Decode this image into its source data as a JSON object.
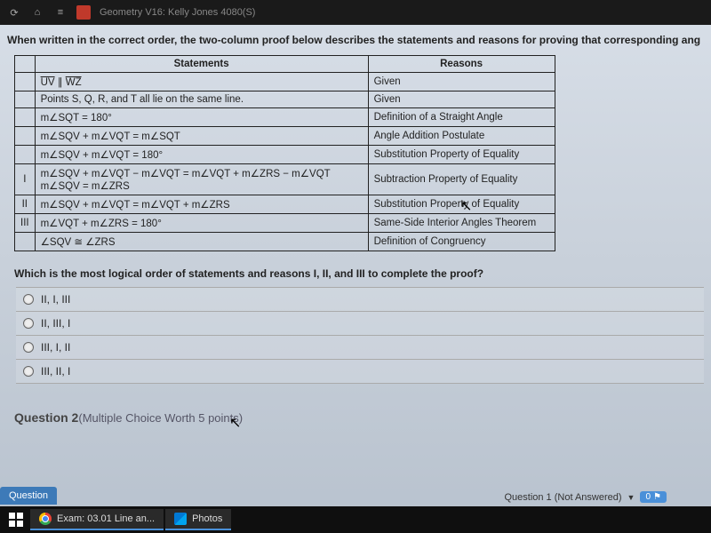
{
  "topbar": {
    "title": "Geometry V16: Kelly Jones  4080(S)"
  },
  "prompt": "When written in the correct order, the two-column proof below describes the statements and reasons for proving that corresponding ang",
  "table": {
    "headers": {
      "statements": "Statements",
      "reasons": "Reasons"
    },
    "rows": [
      {
        "num": "",
        "stmt_html": "<span class='overline'>UV</span> ∥ <span class='overline'>WZ</span>",
        "reason": "Given"
      },
      {
        "num": "",
        "stmt": "Points S, Q, R, and T all lie on the same line.",
        "reason": "Given"
      },
      {
        "num": "",
        "stmt": "m∠SQT = 180°",
        "reason": "Definition of a Straight Angle"
      },
      {
        "num": "",
        "stmt": "m∠SQV + m∠VQT = m∠SQT",
        "reason": "Angle Addition Postulate"
      },
      {
        "num": "",
        "stmt": "m∠SQV + m∠VQT = 180°",
        "reason": "Substitution Property of Equality"
      },
      {
        "num": "I",
        "stmt": "m∠SQV + m∠VQT − m∠VQT = m∠VQT + m∠ZRS − m∠VQT\nm∠SQV = m∠ZRS",
        "reason": "Subtraction Property of Equality"
      },
      {
        "num": "II",
        "stmt": "m∠SQV + m∠VQT = m∠VQT + m∠ZRS",
        "reason": "Substitution Property of Equality"
      },
      {
        "num": "III",
        "stmt": "m∠VQT + m∠ZRS = 180°",
        "reason": "Same-Side Interior Angles Theorem"
      },
      {
        "num": "",
        "stmt": "∠SQV ≅ ∠ZRS",
        "reason": "Definition of Congruency"
      }
    ]
  },
  "question": "Which is the most logical order of statements and reasons I, II, and III to complete the proof?",
  "options": [
    "II, I, III",
    "II, III, I",
    "III, I, II",
    "III, II, I"
  ],
  "q2": {
    "label": "Question 2",
    "sub": "(Multiple Choice Worth 5 points)"
  },
  "tab": "Question",
  "status": {
    "text": "Question 1 (Not Answered)",
    "badge": "0"
  },
  "taskbar": {
    "item1": "Exam: 03.01 Line an...",
    "item2": "Photos"
  }
}
